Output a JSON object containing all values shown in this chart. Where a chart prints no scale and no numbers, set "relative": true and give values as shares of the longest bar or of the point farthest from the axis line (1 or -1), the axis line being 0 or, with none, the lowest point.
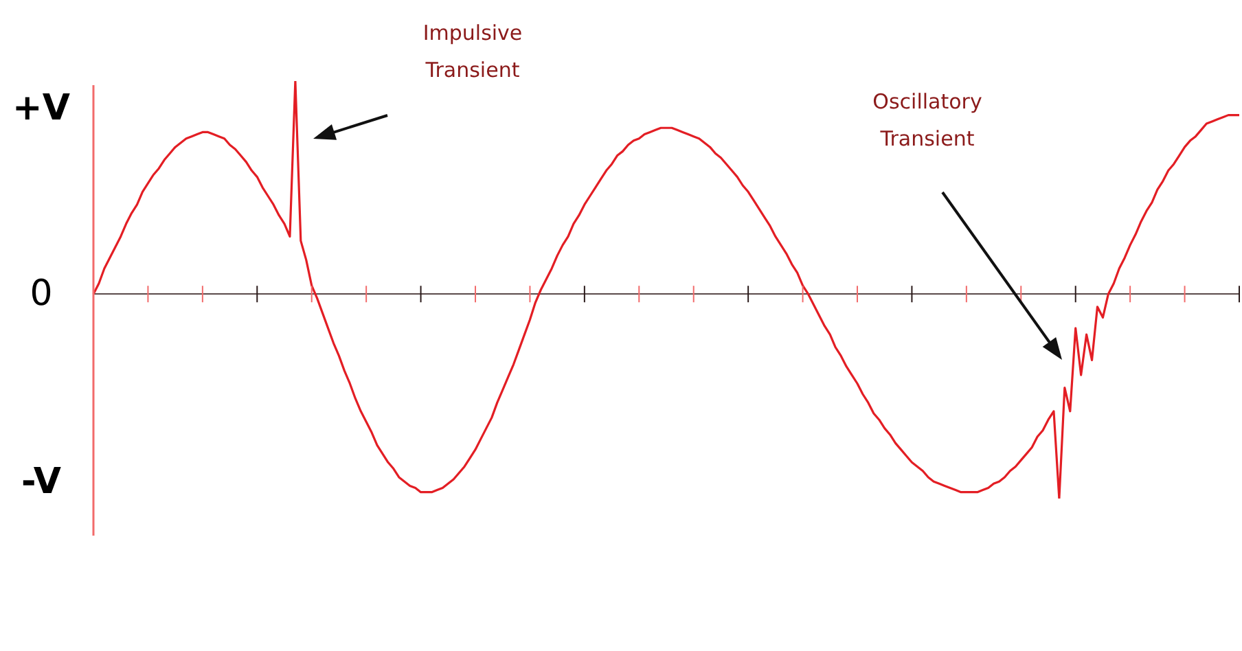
{
  "chart_data": {
    "type": "line",
    "categories": [
      null,
      null,
      null,
      null,
      null,
      null,
      null,
      null,
      null,
      null,
      null,
      null,
      null,
      null,
      null,
      null,
      null,
      null,
      null,
      null,
      null,
      null,
      null,
      null,
      null,
      null,
      null,
      null,
      null,
      null,
      null,
      null,
      null,
      null,
      null,
      null,
      null,
      null,
      null,
      null,
      null,
      null,
      null,
      null,
      null,
      null,
      null,
      null,
      null,
      null,
      null,
      null,
      null,
      null,
      null,
      null,
      null,
      null,
      null,
      null,
      null,
      null,
      null,
      null,
      null,
      null,
      null,
      null,
      null,
      null,
      null,
      null,
      null,
      null,
      null,
      null,
      null,
      null,
      null,
      null,
      null,
      null,
      null,
      null,
      null,
      null,
      null,
      null,
      null,
      null,
      null,
      null,
      null,
      null,
      null,
      null,
      null,
      null,
      null,
      null,
      null,
      null,
      null,
      null,
      null,
      null,
      null,
      null,
      null,
      null,
      null,
      null,
      null,
      null,
      null,
      null,
      null,
      null,
      null,
      null,
      null,
      null,
      null,
      null,
      null,
      null,
      null,
      null,
      null,
      null,
      null,
      null,
      null,
      null,
      null,
      null,
      null,
      null,
      null,
      null,
      null,
      null,
      null,
      null,
      null,
      null,
      null,
      null,
      null,
      null,
      null,
      null,
      null,
      null,
      null,
      null,
      null,
      null,
      null,
      null,
      null,
      null,
      null,
      null,
      null,
      null,
      null,
      null,
      null,
      null,
      null,
      null,
      null,
      null,
      null,
      null,
      null,
      null,
      null,
      null,
      null,
      null,
      null,
      null,
      null,
      null,
      null,
      null,
      null,
      null,
      null,
      null,
      null,
      null,
      null,
      null,
      null,
      null,
      null,
      null,
      null,
      null,
      null,
      null,
      null,
      null,
      null,
      null,
      null,
      null,
      null
    ],
    "series": [
      {
        "color": "#e31e24",
        "values": [
          0,
          0.05,
          0.12,
          0.17,
          0.22,
          0.27,
          0.33,
          0.38,
          0.42,
          0.48,
          0.52,
          0.56,
          0.59,
          0.63,
          0.66,
          0.69,
          0.71,
          0.73,
          0.74,
          0.75,
          0.76,
          0.76,
          0.75,
          0.74,
          0.73,
          0.7,
          0.68,
          0.65,
          0.62,
          0.58,
          0.55,
          0.5,
          0.46,
          0.42,
          0.37,
          0.33,
          0.27,
          1,
          0.25,
          0.16,
          0.04,
          -0.02,
          -0.09,
          -0.16,
          -0.23,
          -0.29,
          -0.36,
          -0.42,
          -0.49,
          -0.55,
          -0.6,
          -0.65,
          -0.71,
          -0.75,
          -0.79,
          -0.82,
          -0.86,
          -0.88,
          -0.9,
          -0.91,
          -0.93,
          -0.93,
          -0.93,
          -0.92,
          -0.91,
          -0.89,
          -0.87,
          -0.84,
          -0.81,
          -0.77,
          -0.73,
          -0.68,
          -0.63,
          -0.58,
          -0.51,
          -0.45,
          -0.39,
          -0.33,
          -0.26,
          -0.19,
          -0.12,
          -0.04,
          0.02,
          0.07,
          0.12,
          0.18,
          0.23,
          0.27,
          0.33,
          0.37,
          0.42,
          0.46,
          0.5,
          0.54,
          0.58,
          0.61,
          0.65,
          0.67,
          0.7,
          0.72,
          0.73,
          0.75,
          0.76,
          0.77,
          0.78,
          0.78,
          0.78,
          0.77,
          0.76,
          0.75,
          0.74,
          0.73,
          0.71,
          0.69,
          0.66,
          0.64,
          0.61,
          0.58,
          0.55,
          0.51,
          0.48,
          0.44,
          0.4,
          0.36,
          0.32,
          0.27,
          0.23,
          0.19,
          0.14,
          0.1,
          0.04,
          0,
          -0.05,
          -0.1,
          -0.15,
          -0.19,
          -0.25,
          -0.29,
          -0.34,
          -0.38,
          -0.42,
          -0.47,
          -0.51,
          -0.56,
          -0.59,
          -0.63,
          -0.66,
          -0.7,
          -0.73,
          -0.76,
          -0.79,
          -0.81,
          -0.83,
          -0.86,
          -0.88,
          -0.89,
          -0.9,
          -0.91,
          -0.92,
          -0.93,
          -0.93,
          -0.93,
          -0.93,
          -0.92,
          -0.91,
          -0.89,
          -0.88,
          -0.86,
          -0.83,
          -0.81,
          -0.78,
          -0.75,
          -0.72,
          -0.67,
          -0.64,
          -0.59,
          -0.55,
          -0.96,
          -0.44,
          -0.55,
          -0.16,
          -0.38,
          -0.19,
          -0.31,
          -0.06,
          -0.11,
          0,
          0.05,
          0.12,
          0.17,
          0.23,
          0.28,
          0.34,
          0.39,
          0.43,
          0.49,
          0.53,
          0.58,
          0.61,
          0.65,
          0.69,
          0.72,
          0.74,
          0.77,
          0.8,
          0.81,
          0.82,
          0.83,
          0.84,
          0.84,
          0.84
        ]
      }
    ],
    "relative": true,
    "grid": false,
    "legend": false,
    "marker": "none",
    "line_style": "solid",
    "annotations": [
      "+V",
      "0",
      "-V",
      "Impulsive Transient",
      "Oscillatory Transient"
    ]
  }
}
